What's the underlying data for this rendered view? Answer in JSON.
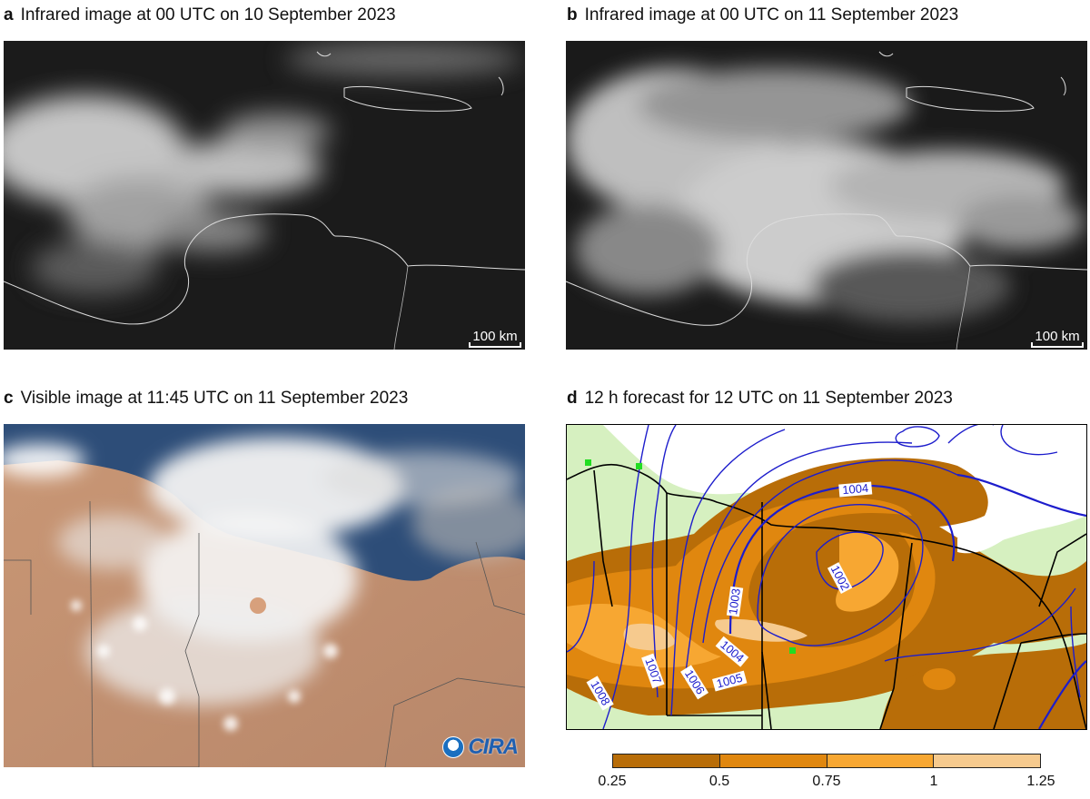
{
  "panels": [
    {
      "letter": "a",
      "title": "Infrared image at 00 UTC on 10 September 2023",
      "scale_label": "100 km"
    },
    {
      "letter": "b",
      "title": "Infrared image at 00 UTC on 11 September 2023",
      "scale_label": "100 km"
    },
    {
      "letter": "c",
      "title": "Visible image at 11:45 UTC on 11 September 2023",
      "logo_text": "CIRA"
    },
    {
      "letter": "d",
      "title": "12 h forecast for 12 UTC on 11 September 2023"
    }
  ],
  "isobars": [
    {
      "label": "1002",
      "value": 1002
    },
    {
      "label": "1003",
      "value": 1003
    },
    {
      "label": "1004",
      "value": 1004
    },
    {
      "label": "1004",
      "value": 1004
    },
    {
      "label": "1005",
      "value": 1005
    },
    {
      "label": "1006",
      "value": 1006
    },
    {
      "label": "1007",
      "value": 1007
    },
    {
      "label": "1008",
      "value": 1008
    }
  ],
  "colorbar": {
    "ticks": [
      "0.25",
      "0.5",
      "0.75",
      "1",
      "1.25"
    ],
    "colors": [
      "#b86d08",
      "#e0870f",
      "#f7a732",
      "#f6ca8e"
    ]
  },
  "colors": {
    "land_fill": "#d6f0c0",
    "isobar": "#1d1dcc",
    "border": "#000000",
    "marker": "#22dd22"
  }
}
